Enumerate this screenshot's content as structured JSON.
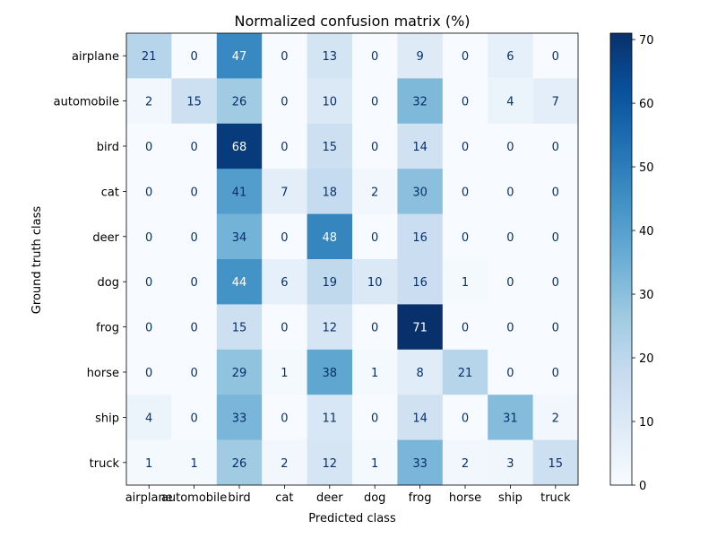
{
  "chart_data": {
    "type": "heatmap",
    "title": "Normalized confusion matrix (%)",
    "xlabel": "Predicted class",
    "ylabel": "Ground truth class",
    "x_categories": [
      "airplane",
      "automobile",
      "bird",
      "cat",
      "deer",
      "dog",
      "frog",
      "horse",
      "ship",
      "truck"
    ],
    "y_categories": [
      "airplane",
      "automobile",
      "bird",
      "cat",
      "deer",
      "dog",
      "frog",
      "horse",
      "ship",
      "truck"
    ],
    "values": [
      [
        21,
        0,
        47,
        0,
        13,
        0,
        9,
        0,
        6,
        0
      ],
      [
        2,
        15,
        26,
        0,
        10,
        0,
        32,
        0,
        4,
        7
      ],
      [
        0,
        0,
        68,
        0,
        15,
        0,
        14,
        0,
        0,
        0
      ],
      [
        0,
        0,
        41,
        7,
        18,
        2,
        30,
        0,
        0,
        0
      ],
      [
        0,
        0,
        34,
        0,
        48,
        0,
        16,
        0,
        0,
        0
      ],
      [
        0,
        0,
        44,
        6,
        19,
        10,
        16,
        1,
        0,
        0
      ],
      [
        0,
        0,
        15,
        0,
        12,
        0,
        71,
        0,
        0,
        0
      ],
      [
        0,
        0,
        29,
        1,
        38,
        1,
        8,
        21,
        0,
        0
      ],
      [
        4,
        0,
        33,
        0,
        11,
        0,
        14,
        0,
        31,
        2
      ],
      [
        1,
        1,
        26,
        2,
        12,
        1,
        33,
        2,
        3,
        15
      ]
    ],
    "colorbar": {
      "min": 0,
      "max": 71,
      "ticks": [
        0,
        10,
        20,
        30,
        40,
        50,
        60,
        70
      ]
    },
    "colormap": [
      "#f7fbff",
      "#deebf7",
      "#c6dbef",
      "#9ecae1",
      "#6baed6",
      "#4292c6",
      "#2171b5",
      "#08519c",
      "#08306b"
    ],
    "text_colors": {
      "light": "#ffffff",
      "dark": "#08306b"
    }
  }
}
